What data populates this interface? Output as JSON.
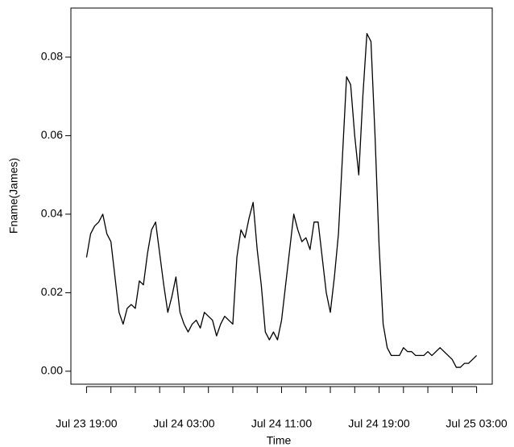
{
  "chart_data": {
    "type": "line",
    "x_label": "Time",
    "y_label": "Fname(James)",
    "color": "#000000",
    "x": [
      "Jul 23 19:00",
      "Jul 23 19:20",
      "Jul 23 19:40",
      "Jul 23 20:00",
      "Jul 23 20:20",
      "Jul 23 20:40",
      "Jul 23 21:00",
      "Jul 23 21:20",
      "Jul 23 21:40",
      "Jul 23 22:00",
      "Jul 23 22:20",
      "Jul 23 22:40",
      "Jul 23 23:00",
      "Jul 23 23:20",
      "Jul 23 23:40",
      "Jul 24 00:00",
      "Jul 24 00:20",
      "Jul 24 00:40",
      "Jul 24 01:00",
      "Jul 24 01:20",
      "Jul 24 01:40",
      "Jul 24 02:00",
      "Jul 24 02:20",
      "Jul 24 02:40",
      "Jul 24 03:00",
      "Jul 24 03:20",
      "Jul 24 03:40",
      "Jul 24 04:00",
      "Jul 24 04:20",
      "Jul 24 04:40",
      "Jul 24 05:00",
      "Jul 24 05:20",
      "Jul 24 05:40",
      "Jul 24 06:00",
      "Jul 24 06:20",
      "Jul 24 06:40",
      "Jul 24 07:00",
      "Jul 24 07:20",
      "Jul 24 07:40",
      "Jul 24 08:00",
      "Jul 24 08:20",
      "Jul 24 08:40",
      "Jul 24 09:00",
      "Jul 24 09:20",
      "Jul 24 09:40",
      "Jul 24 10:00",
      "Jul 24 10:20",
      "Jul 24 10:40",
      "Jul 24 11:00",
      "Jul 24 11:20",
      "Jul 24 11:40",
      "Jul 24 12:00",
      "Jul 24 12:20",
      "Jul 24 12:40",
      "Jul 24 13:00",
      "Jul 24 13:20",
      "Jul 24 13:40",
      "Jul 24 14:00",
      "Jul 24 14:20",
      "Jul 24 14:40",
      "Jul 24 15:00",
      "Jul 24 15:20",
      "Jul 24 15:40",
      "Jul 24 16:00",
      "Jul 24 16:20",
      "Jul 24 16:40",
      "Jul 24 17:00",
      "Jul 24 17:20",
      "Jul 24 17:40",
      "Jul 24 18:00",
      "Jul 24 18:20",
      "Jul 24 18:40",
      "Jul 24 19:00",
      "Jul 24 19:20",
      "Jul 24 19:40",
      "Jul 24 20:00",
      "Jul 24 20:20",
      "Jul 24 20:40",
      "Jul 24 21:00",
      "Jul 24 21:20",
      "Jul 24 21:40",
      "Jul 24 22:00",
      "Jul 24 22:20",
      "Jul 24 22:40",
      "Jul 24 23:00",
      "Jul 24 23:20",
      "Jul 24 23:40",
      "Jul 25 00:00",
      "Jul 25 00:20",
      "Jul 25 00:40",
      "Jul 25 01:00",
      "Jul 25 01:20",
      "Jul 25 01:40",
      "Jul 25 02:00",
      "Jul 25 02:20",
      "Jul 25 02:40",
      "Jul 25 03:00"
    ],
    "values": [
      0.029,
      0.035,
      0.037,
      0.038,
      0.04,
      0.035,
      0.033,
      0.024,
      0.015,
      0.012,
      0.016,
      0.017,
      0.016,
      0.023,
      0.022,
      0.03,
      0.036,
      0.038,
      0.03,
      0.022,
      0.015,
      0.019,
      0.024,
      0.015,
      0.012,
      0.01,
      0.012,
      0.013,
      0.011,
      0.015,
      0.014,
      0.013,
      0.009,
      0.012,
      0.014,
      0.013,
      0.012,
      0.029,
      0.036,
      0.034,
      0.039,
      0.043,
      0.031,
      0.022,
      0.01,
      0.008,
      0.01,
      0.008,
      0.013,
      0.022,
      0.031,
      0.04,
      0.036,
      0.033,
      0.034,
      0.031,
      0.038,
      0.038,
      0.029,
      0.02,
      0.015,
      0.024,
      0.035,
      0.055,
      0.075,
      0.073,
      0.06,
      0.05,
      0.07,
      0.086,
      0.084,
      0.06,
      0.032,
      0.012,
      0.006,
      0.004,
      0.004,
      0.004,
      0.006,
      0.005,
      0.005,
      0.004,
      0.004,
      0.004,
      0.005,
      0.004,
      0.005,
      0.006,
      0.005,
      0.004,
      0.003,
      0.001,
      0.001,
      0.002,
      0.002,
      0.003,
      0.004
    ],
    "xlim": [
      "Jul 23 17:43",
      "Jul 25 04:17"
    ],
    "xticks": [
      "Jul 23 19:00",
      {
        "value": "Jul 23 21:00",
        "label": null
      },
      {
        "value": "Jul 23 23:00",
        "label": null
      },
      {
        "value": "Jul 24 01:00",
        "label": null
      },
      "Jul 24 03:00",
      {
        "value": "Jul 24 05:00",
        "label": null
      },
      {
        "value": "Jul 24 07:00",
        "label": null
      },
      {
        "value": "Jul 24 09:00",
        "label": null
      },
      "Jul 24 11:00",
      {
        "value": "Jul 24 13:00",
        "label": null
      },
      {
        "value": "Jul 24 15:00",
        "label": null
      },
      {
        "value": "Jul 24 17:00",
        "label": null
      },
      "Jul 24 19:00",
      {
        "value": "Jul 24 21:00",
        "label": null
      },
      {
        "value": "Jul 24 23:00",
        "label": null
      },
      {
        "value": "Jul 25 01:00",
        "label": null
      },
      "Jul 25 03:00"
    ],
    "ylim": [
      -0.0033,
      0.0925
    ],
    "yticks": [
      {
        "value": 0,
        "label": "0.00"
      },
      0.02,
      0.04,
      0.06,
      0.08
    ]
  }
}
